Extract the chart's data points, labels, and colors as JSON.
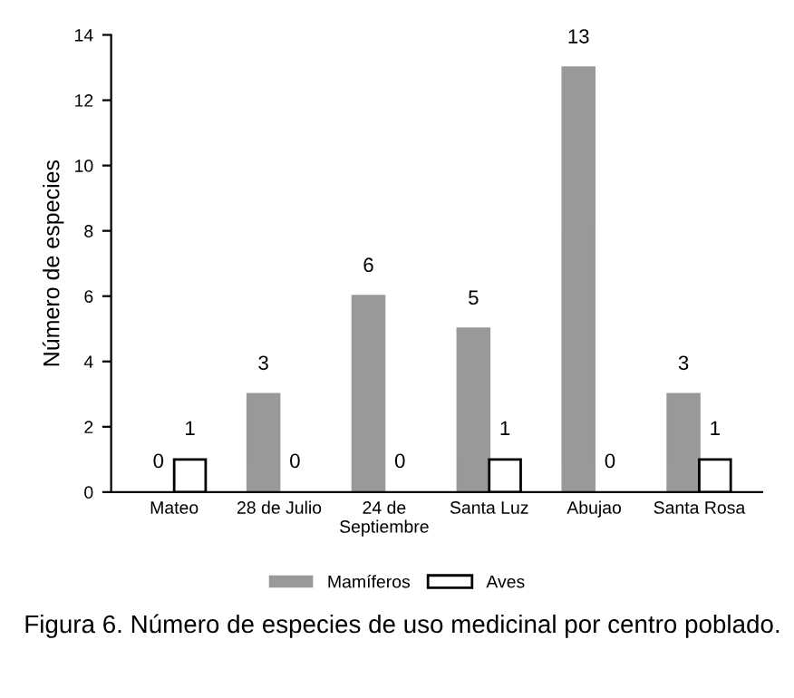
{
  "chart_data": {
    "type": "bar",
    "ylabel": "Número de especies",
    "categories": [
      "Mateo",
      "28 de Julio",
      "24 de\nSeptiembre",
      "Santa Luz",
      "Abujao",
      "Santa Rosa"
    ],
    "series": [
      {
        "name": "Mamíferos",
        "color": "#999999",
        "values": [
          0,
          3,
          6,
          5,
          13,
          3
        ]
      },
      {
        "name": "Aves",
        "color": "#ffffff",
        "values": [
          1,
          0,
          0,
          1,
          0,
          1
        ]
      }
    ],
    "ylim": [
      0,
      14
    ],
    "yticks": [
      0,
      2,
      4,
      6,
      8,
      10,
      12,
      14
    ],
    "data_labels": true,
    "legend": "bottom",
    "grid": false,
    "annotations": [
      "Figura 6. Número de especies de uso medicinal por centro poblado."
    ]
  }
}
